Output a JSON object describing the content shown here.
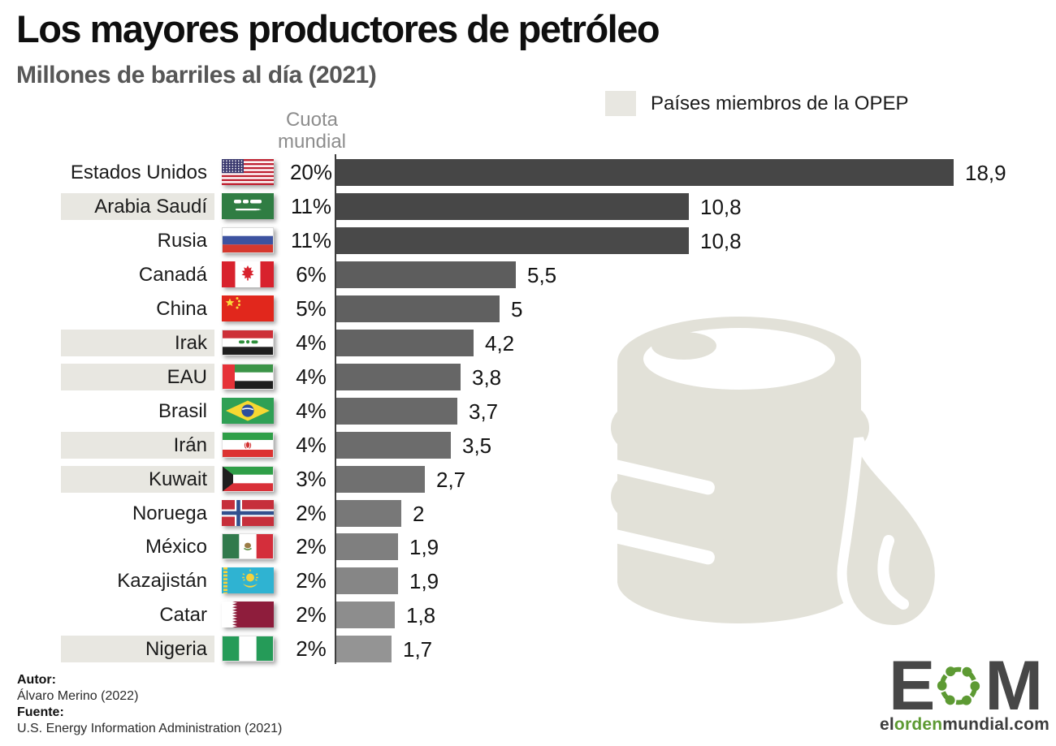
{
  "title": "Los mayores productores de petróleo",
  "subtitle": "Millones de barriles al día (2021)",
  "legend": {
    "label": "Países miembros de la OPEP",
    "swatch_color": "#e8e7e1"
  },
  "column_header": {
    "line1": "Cuota",
    "line2": "mundial"
  },
  "chart_data": {
    "type": "bar",
    "orientation": "horizontal",
    "title": "Los mayores productores de petróleo",
    "subtitle": "Millones de barriles al día (2021)",
    "unit": "millones de barriles al día",
    "legend": "Países miembros de la OPEP",
    "highlight_meaning": "Países miembros de la OPEP",
    "highlight_color": "#e8e7e1",
    "xlim": [
      0,
      19.5
    ],
    "grid": false,
    "rows": [
      {
        "country": "Estados Unidos",
        "flag": "us",
        "share": "20%",
        "value": 18.9,
        "value_label": "18,9",
        "opep": false,
        "bar_color": "#464646"
      },
      {
        "country": "Arabia Saudí",
        "flag": "sa",
        "share": "11%",
        "value": 10.8,
        "value_label": "10,8",
        "opep": true,
        "bar_color": "#474747"
      },
      {
        "country": "Rusia",
        "flag": "ru",
        "share": "11%",
        "value": 10.8,
        "value_label": "10,8",
        "opep": false,
        "bar_color": "#494949"
      },
      {
        "country": "Canadá",
        "flag": "ca",
        "share": "6%",
        "value": 5.5,
        "value_label": "5,5",
        "opep": false,
        "bar_color": "#5d5d5d"
      },
      {
        "country": "China",
        "flag": "cn",
        "share": "5%",
        "value": 5,
        "value_label": "5",
        "opep": false,
        "bar_color": "#606060"
      },
      {
        "country": "Irak",
        "flag": "iq",
        "share": "4%",
        "value": 4.2,
        "value_label": "4,2",
        "opep": true,
        "bar_color": "#636363"
      },
      {
        "country": "EAU",
        "flag": "ae",
        "share": "4%",
        "value": 3.8,
        "value_label": "3,8",
        "opep": true,
        "bar_color": "#666666"
      },
      {
        "country": "Brasil",
        "flag": "br",
        "share": "4%",
        "value": 3.7,
        "value_label": "3,7",
        "opep": false,
        "bar_color": "#696969"
      },
      {
        "country": "Irán",
        "flag": "ir",
        "share": "4%",
        "value": 3.5,
        "value_label": "3,5",
        "opep": true,
        "bar_color": "#6c6c6c"
      },
      {
        "country": "Kuwait",
        "flag": "kw",
        "share": "3%",
        "value": 2.7,
        "value_label": "2,7",
        "opep": true,
        "bar_color": "#707070"
      },
      {
        "country": "Noruega",
        "flag": "no",
        "share": "2%",
        "value": 2,
        "value_label": "2",
        "opep": false,
        "bar_color": "#787878"
      },
      {
        "country": "México",
        "flag": "mx",
        "share": "2%",
        "value": 1.9,
        "value_label": "1,9",
        "opep": false,
        "bar_color": "#7f7f7f"
      },
      {
        "country": "Kazajistán",
        "flag": "kz",
        "share": "2%",
        "value": 1.9,
        "value_label": "1,9",
        "opep": false,
        "bar_color": "#868686"
      },
      {
        "country": "Catar",
        "flag": "qa",
        "share": "2%",
        "value": 1.8,
        "value_label": "1,8",
        "opep": false,
        "bar_color": "#8d8d8d"
      },
      {
        "country": "Nigeria",
        "flag": "ng",
        "share": "2%",
        "value": 1.7,
        "value_label": "1,7",
        "opep": true,
        "bar_color": "#949494"
      }
    ]
  },
  "footer": {
    "author_label": "Autor:",
    "author": "Álvaro Merino (2022)",
    "source_label": "Fuente:",
    "source": "U.S. Energy Information Administration (2021)"
  },
  "logo": {
    "letter_e": "E",
    "letter_m": "M",
    "domain_el": "el",
    "domain_orden": "orden",
    "domain_rest": "mundial.com",
    "green": "#5d9a33",
    "dark": "#474747"
  },
  "colors": {
    "axis": "#3e3e3e",
    "watermark": "#e2e1d8",
    "title": "#0f0f0f",
    "subtitle": "#575757",
    "column_header": "#8d8d8d"
  }
}
